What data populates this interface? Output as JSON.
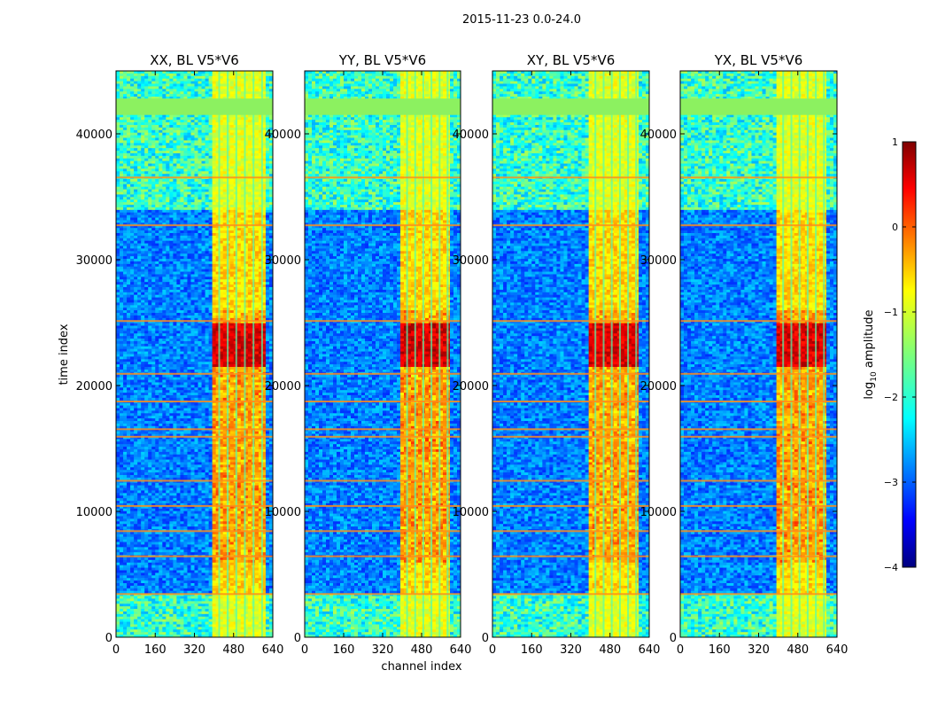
{
  "chart_data": {
    "type": "heatmap",
    "suptitle": "2015-11-23 0.0-24.0",
    "xlabel": "channel index",
    "ylabel": "time index",
    "xlim": [
      0,
      640
    ],
    "ylim": [
      0,
      45000
    ],
    "x_ticks": [
      "0",
      "160",
      "320",
      "480",
      "640"
    ],
    "y_ticks": [
      "0",
      "10000",
      "20000",
      "30000",
      "40000"
    ],
    "panels": [
      {
        "title": "XX, BL V5*V6",
        "band": [
          400,
          610
        ],
        "hot": 0.9
      },
      {
        "title": "YY, BL V5*V6",
        "band": [
          400,
          600
        ],
        "hot": 1.0
      },
      {
        "title": "XY, BL V5*V6",
        "band": [
          400,
          600
        ],
        "hot": 0.85
      },
      {
        "title": "YX, BL V5*V6",
        "band": [
          400,
          600
        ],
        "hot": 0.95
      }
    ],
    "colorbar": {
      "label_prefix": "log",
      "label_sub": "10",
      "label_suffix": " amplitude",
      "range": [
        -4,
        1
      ],
      "ticks": [
        "1",
        "0",
        "−1",
        "−2",
        "−3",
        "−4"
      ],
      "colormap": "jet"
    },
    "flagged_time_ranges": [
      [
        41500,
        42800
      ]
    ],
    "bright_time_rows": [
      3500,
      6500,
      8500,
      10500,
      12500,
      16000,
      16600,
      18800,
      21000,
      25200,
      32800,
      36600
    ]
  }
}
